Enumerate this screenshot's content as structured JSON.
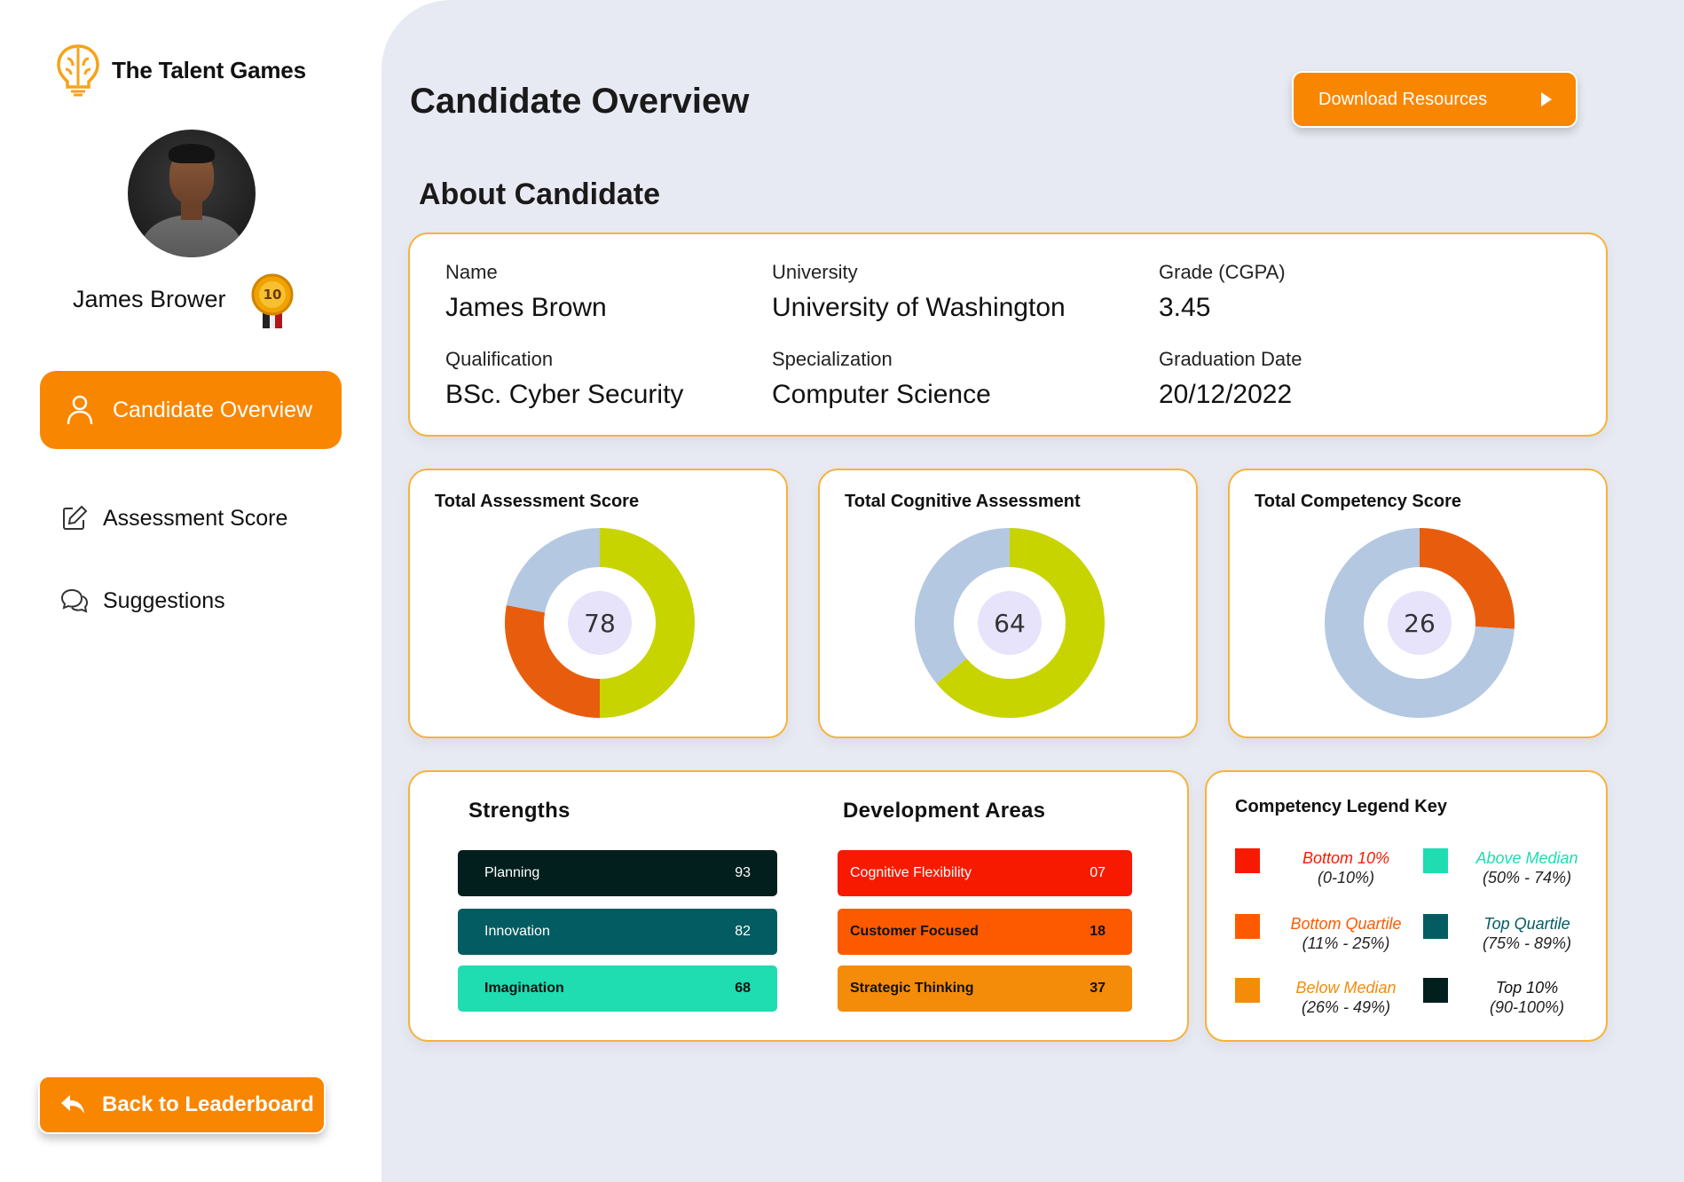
{
  "brand": {
    "name": "The Talent Games"
  },
  "profile": {
    "name": "James Brower",
    "medal_number": "10"
  },
  "nav": {
    "active": "Candidate Overview",
    "assessment": "Assessment Score",
    "suggestions": "Suggestions",
    "back": "Back to Leaderboard"
  },
  "header": {
    "title": "Candidate Overview",
    "download": "Download Resources"
  },
  "about": {
    "title": "About Candidate",
    "name_label": "Name",
    "name": "James Brown",
    "university_label": "University",
    "university": "University of Washington",
    "grade_label": "Grade (CGPA)",
    "grade": "3.45",
    "qualification_label": "Qualification",
    "qualification": "BSc. Cyber Security",
    "specialization_label": "Specialization",
    "specialization": "Computer Science",
    "graduation_label": "Graduation Date",
    "graduation": "20/12/2022"
  },
  "chart_data": [
    {
      "type": "pie",
      "title": "Total Assessment Score",
      "center_label": "78",
      "series": [
        {
          "name": "green",
          "value": 50,
          "color": "#c8d400"
        },
        {
          "name": "orange",
          "value": 28,
          "color": "#e85d0d"
        },
        {
          "name": "remaining",
          "value": 22,
          "color": "#b4c8e2"
        }
      ]
    },
    {
      "type": "pie",
      "title": "Total Cognitive Assessment",
      "center_label": "64",
      "series": [
        {
          "name": "green",
          "value": 64,
          "color": "#c8d400"
        },
        {
          "name": "remaining",
          "value": 36,
          "color": "#b4c8e2"
        }
      ]
    },
    {
      "type": "pie",
      "title": "Total Competency Score",
      "center_label": "26",
      "series": [
        {
          "name": "orange",
          "value": 26,
          "color": "#e85d0d"
        },
        {
          "name": "remaining",
          "value": 74,
          "color": "#b4c8e2"
        }
      ]
    }
  ],
  "strengths": {
    "title": "Strengths",
    "items": [
      {
        "label": "Planning",
        "value": "93",
        "color": "#031f1d"
      },
      {
        "label": "Innovation",
        "value": "82",
        "color": "#035c61"
      },
      {
        "label": "Imagination",
        "value": "68",
        "color": "#1fdcb1"
      }
    ]
  },
  "development": {
    "title": "Development Areas",
    "items": [
      {
        "label": "Cognitive Flexibility",
        "value": "07",
        "color": "#f81a00"
      },
      {
        "label": "Customer Focused",
        "value": "18",
        "color": "#fd5a00"
      },
      {
        "label": "Strategic Thinking",
        "value": "37",
        "color": "#f48c0a"
      }
    ]
  },
  "legend": {
    "title": "Competency Legend Key",
    "items": [
      {
        "label": "Bottom 10%",
        "range": "(0-10%)",
        "color": "#f81a00"
      },
      {
        "label": "Above Median",
        "range": "(50% - 74%)",
        "color": "#1fdcb1"
      },
      {
        "label": "Bottom Quartile",
        "range": "(11% - 25%)",
        "color": "#fd5a00"
      },
      {
        "label": "Top Quartile",
        "range": "(75% - 89%)",
        "color": "#035c61"
      },
      {
        "label": "Below Median",
        "range": "(26% - 49%)",
        "color": "#f48c0a"
      },
      {
        "label": "Top 10%",
        "range": "(90-100%)",
        "color": "#031f1d"
      }
    ]
  }
}
